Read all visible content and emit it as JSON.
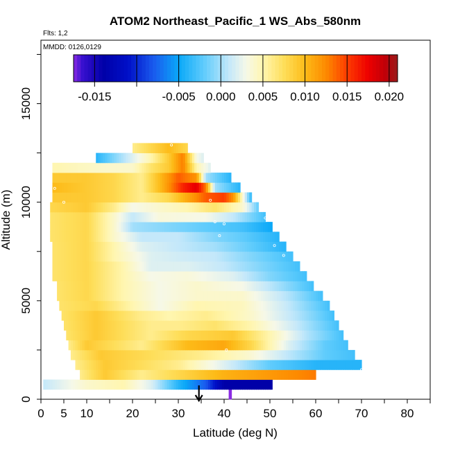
{
  "chart_data": {
    "type": "heatmap",
    "title": "ATOM2 Northeast_Pacific_1 WS_Abs_580nm",
    "flights_label": "Flts: 1,2",
    "dates_label": "MMDD: 0126,0129",
    "xlabel": "Latitude (deg N)",
    "ylabel": "Altitude (m)",
    "xlim": [
      0,
      85
    ],
    "ylim": [
      0,
      18500
    ],
    "x_ticks": [
      0,
      5,
      10,
      20,
      30,
      40,
      50,
      60,
      70,
      80
    ],
    "x_tick_labels": [
      "0",
      "5",
      "10",
      "20",
      "30",
      "40",
      "50",
      "60",
      "70",
      "80"
    ],
    "y_ticks": [
      0,
      5000,
      10000,
      15000
    ],
    "y_tick_labels": [
      "0",
      "5000",
      "10000",
      "15000"
    ],
    "colorbar": {
      "range": [
        -0.0175,
        0.021
      ],
      "ticks": [
        -0.015,
        -0.005,
        0.0,
        0.005,
        0.01,
        0.015,
        0.02
      ],
      "tick_labels": [
        "-0.015",
        "-0.005",
        "0.000",
        "0.005",
        "0.010",
        "0.015",
        "0.020"
      ],
      "colors": [
        {
          "v": -0.0175,
          "c": "#8a2be2"
        },
        {
          "v": -0.0165,
          "c": "#3a10d0"
        },
        {
          "v": -0.014,
          "c": "#0000a8"
        },
        {
          "v": -0.011,
          "c": "#0010c8"
        },
        {
          "v": -0.008,
          "c": "#1a5aee"
        },
        {
          "v": -0.005,
          "c": "#0aa8f8"
        },
        {
          "v": -0.002,
          "c": "#60ccfc"
        },
        {
          "v": 0.001,
          "c": "#c4e8fa"
        },
        {
          "v": 0.003,
          "c": "#f6f8e8"
        },
        {
          "v": 0.005,
          "c": "#fff6b0"
        },
        {
          "v": 0.0075,
          "c": "#fede5a"
        },
        {
          "v": 0.01,
          "c": "#fdbb18"
        },
        {
          "v": 0.0125,
          "c": "#fd8a00"
        },
        {
          "v": 0.015,
          "c": "#fd3c00"
        },
        {
          "v": 0.0175,
          "c": "#ee0000"
        },
        {
          "v": 0.0195,
          "c": "#c00008"
        },
        {
          "v": 0.021,
          "c": "#9a1c1c"
        }
      ]
    },
    "grid": false,
    "surface_marker_lat": 34.5,
    "rows": [
      {
        "alt": 0,
        "lat": [
          41,
          41
        ],
        "anchors": [
          [
            41,
            -0.0175
          ]
        ]
      },
      {
        "alt": 500,
        "lat": [
          0.5,
          50.5
        ],
        "anchors": [
          [
            0.5,
            0.001
          ],
          [
            10,
            0.004
          ],
          [
            18,
            0.005
          ],
          [
            24,
            0.002
          ],
          [
            30,
            -0.004
          ],
          [
            36,
            -0.008
          ],
          [
            40,
            -0.014
          ],
          [
            50.5,
            -0.014
          ]
        ]
      },
      {
        "alt": 1000,
        "lat": [
          8.5,
          60
        ],
        "anchors": [
          [
            8.5,
            0.006
          ],
          [
            14,
            0.009
          ],
          [
            22,
            0.006
          ],
          [
            30,
            0.008
          ],
          [
            40,
            0.0105
          ],
          [
            52,
            0.012
          ],
          [
            60,
            0.013
          ]
        ]
      },
      {
        "alt": 1500,
        "lat": [
          7.5,
          70
        ],
        "anchors": [
          [
            7.5,
            0.006
          ],
          [
            14,
            0.009
          ],
          [
            30,
            0.006
          ],
          [
            40,
            0.002
          ],
          [
            50,
            -0.002
          ],
          [
            60,
            -0.004
          ],
          [
            70,
            -0.004
          ]
        ]
      },
      {
        "alt": 2000,
        "lat": [
          6.5,
          68.5
        ],
        "anchors": [
          [
            6.5,
            0.006
          ],
          [
            13,
            0.009
          ],
          [
            28,
            0.007
          ],
          [
            35,
            0.006
          ],
          [
            45,
            0.004
          ],
          [
            55,
            0.0005
          ],
          [
            62,
            -0.002
          ],
          [
            68.5,
            -0.003
          ]
        ]
      },
      {
        "alt": 2500,
        "lat": [
          6,
          67
        ],
        "anchors": [
          [
            6,
            0.006
          ],
          [
            10,
            0.009
          ],
          [
            22,
            0.006
          ],
          [
            32,
            0.01
          ],
          [
            40,
            0.011
          ],
          [
            46,
            0.008
          ],
          [
            54,
            0.002
          ],
          [
            62,
            -0.002
          ],
          [
            67,
            -0.003
          ]
        ]
      },
      {
        "alt": 3000,
        "lat": [
          5.5,
          66
        ],
        "anchors": [
          [
            5.5,
            0.007
          ],
          [
            12,
            0.009
          ],
          [
            24,
            0.006
          ],
          [
            32,
            0.008
          ],
          [
            42,
            0.009
          ],
          [
            50,
            0.005
          ],
          [
            58,
            0.0005
          ],
          [
            66,
            -0.003
          ]
        ]
      },
      {
        "alt": 3500,
        "lat": [
          5,
          65
        ],
        "anchors": [
          [
            5,
            0.007
          ],
          [
            12,
            0.009
          ],
          [
            24,
            0.006
          ],
          [
            30,
            0.006
          ],
          [
            38,
            0.007
          ],
          [
            46,
            0.005
          ],
          [
            56,
            0.001
          ],
          [
            65,
            -0.003
          ]
        ]
      },
      {
        "alt": 4000,
        "lat": [
          4.5,
          64
        ],
        "anchors": [
          [
            4.5,
            0.007
          ],
          [
            12,
            0.009
          ],
          [
            22,
            0.006
          ],
          [
            28,
            0.005
          ],
          [
            36,
            0.006
          ],
          [
            46,
            0.004
          ],
          [
            56,
            0.0005
          ],
          [
            64,
            -0.003
          ]
        ]
      },
      {
        "alt": 4500,
        "lat": [
          4,
          63
        ],
        "anchors": [
          [
            4,
            0.007
          ],
          [
            12,
            0.008
          ],
          [
            20,
            0.005
          ],
          [
            26,
            0.003
          ],
          [
            34,
            0.005
          ],
          [
            44,
            0.0045
          ],
          [
            54,
            0.001
          ],
          [
            63,
            -0.003
          ]
        ]
      },
      {
        "alt": 5000,
        "lat": [
          3.5,
          61.5
        ],
        "anchors": [
          [
            3.5,
            0.007
          ],
          [
            10,
            0.008
          ],
          [
            18,
            0.005
          ],
          [
            26,
            0.003
          ],
          [
            34,
            0.004
          ],
          [
            44,
            0.004
          ],
          [
            54,
            0.0005
          ],
          [
            61.5,
            -0.003
          ]
        ]
      },
      {
        "alt": 5500,
        "lat": [
          3.5,
          59.5
        ],
        "anchors": [
          [
            3.5,
            0.007
          ],
          [
            10,
            0.008
          ],
          [
            18,
            0.005
          ],
          [
            26,
            0.003
          ],
          [
            34,
            0.004
          ],
          [
            44,
            0.003
          ],
          [
            52,
            0.0
          ],
          [
            59.5,
            -0.003
          ]
        ]
      },
      {
        "alt": 6000,
        "lat": [
          2.5,
          58
        ],
        "anchors": [
          [
            2.5,
            0.007
          ],
          [
            10,
            0.008
          ],
          [
            18,
            0.005
          ],
          [
            24,
            0.003
          ],
          [
            32,
            0.0035
          ],
          [
            42,
            0.002
          ],
          [
            50,
            -0.001
          ],
          [
            58,
            -0.003
          ]
        ]
      },
      {
        "alt": 6500,
        "lat": [
          2.5,
          56.5
        ],
        "anchors": [
          [
            2.5,
            0.007
          ],
          [
            10,
            0.008
          ],
          [
            18,
            0.005
          ],
          [
            24,
            0.002
          ],
          [
            32,
            0.002
          ],
          [
            40,
            0.001
          ],
          [
            48,
            -0.001
          ],
          [
            56.5,
            -0.003
          ]
        ]
      },
      {
        "alt": 7000,
        "lat": [
          2.5,
          55
        ],
        "anchors": [
          [
            2.5,
            0.007
          ],
          [
            10,
            0.008
          ],
          [
            16,
            0.005
          ],
          [
            24,
            0.002
          ],
          [
            30,
            0.0015
          ],
          [
            38,
            0.001
          ],
          [
            46,
            -0.001
          ],
          [
            55,
            -0.003
          ]
        ]
      },
      {
        "alt": 7500,
        "lat": [
          2.5,
          53.5
        ],
        "anchors": [
          [
            2.5,
            0.007
          ],
          [
            10,
            0.008
          ],
          [
            16,
            0.005
          ],
          [
            22,
            0.002
          ],
          [
            30,
            0.001
          ],
          [
            38,
            0.0
          ],
          [
            46,
            -0.002
          ],
          [
            53.5,
            -0.004
          ]
        ]
      },
      {
        "alt": 8000,
        "lat": [
          2,
          52
        ],
        "anchors": [
          [
            2,
            0.007
          ],
          [
            10,
            0.008
          ],
          [
            16,
            0.004
          ],
          [
            22,
            0.001
          ],
          [
            30,
            0.001
          ],
          [
            38,
            -0.001
          ],
          [
            44,
            -0.002
          ],
          [
            52,
            -0.004
          ]
        ]
      },
      {
        "alt": 8500,
        "lat": [
          2,
          50.5
        ],
        "anchors": [
          [
            2,
            0.007
          ],
          [
            10,
            0.008
          ],
          [
            16,
            0.004
          ],
          [
            20,
            0.0
          ],
          [
            28,
            -0.001
          ],
          [
            36,
            -0.002
          ],
          [
            44,
            -0.003
          ],
          [
            50.5,
            -0.005
          ]
        ]
      },
      {
        "alt": 9000,
        "lat": [
          2,
          49
        ],
        "anchors": [
          [
            2,
            0.007
          ],
          [
            10,
            0.008
          ],
          [
            16,
            0.004
          ],
          [
            20,
            0.001
          ],
          [
            26,
            0.0035
          ],
          [
            36,
            0.003
          ],
          [
            42,
            0.001
          ],
          [
            49,
            -0.003
          ]
        ]
      },
      {
        "alt": 9500,
        "lat": [
          2,
          47.5
        ],
        "anchors": [
          [
            2,
            0.008
          ],
          [
            10,
            0.009
          ],
          [
            16,
            0.006
          ],
          [
            20,
            0.003
          ],
          [
            26,
            0.004
          ],
          [
            32,
            0.005
          ],
          [
            38,
            0.007
          ],
          [
            44,
            0.004
          ],
          [
            47.5,
            -0.002
          ]
        ]
      },
      {
        "alt": 10000,
        "lat": [
          2.5,
          46
        ],
        "anchors": [
          [
            2.5,
            0.009
          ],
          [
            10,
            0.009
          ],
          [
            16,
            0.008
          ],
          [
            22,
            0.006
          ],
          [
            28,
            0.008
          ],
          [
            32,
            0.011
          ],
          [
            36,
            0.014
          ],
          [
            40,
            0.015
          ],
          [
            42,
            0.012
          ],
          [
            46,
            -0.004
          ]
        ]
      },
      {
        "alt": 10500,
        "lat": [
          2.5,
          43.5
        ],
        "anchors": [
          [
            2.5,
            0.01
          ],
          [
            10,
            0.009
          ],
          [
            16,
            0.008
          ],
          [
            22,
            0.006
          ],
          [
            27,
            0.011
          ],
          [
            31,
            0.016
          ],
          [
            34,
            0.018
          ],
          [
            36,
            0.013
          ],
          [
            38,
            0.0
          ],
          [
            43.5,
            -0.004
          ]
        ]
      },
      {
        "alt": 11000,
        "lat": [
          2.5,
          41.5
        ],
        "anchors": [
          [
            2.5,
            0.009
          ],
          [
            10,
            0.009
          ],
          [
            16,
            0.008
          ],
          [
            22,
            0.006
          ],
          [
            26,
            0.01
          ],
          [
            30,
            0.014
          ],
          [
            34,
            0.012
          ],
          [
            36,
            0.0
          ],
          [
            41.5,
            -0.004
          ]
        ]
      },
      {
        "alt": 11500,
        "lat": [
          2.5,
          37
        ],
        "anchors": [
          [
            2.5,
            0.005
          ],
          [
            8,
            0.0045
          ],
          [
            14,
            0.004
          ],
          [
            20,
            0.004
          ],
          [
            24,
            0.007
          ],
          [
            28,
            0.009
          ],
          [
            31,
            0.013
          ],
          [
            34,
            0.005
          ],
          [
            37,
            0.002
          ]
        ]
      },
      {
        "alt": 12000,
        "lat": [
          12,
          35.5
        ],
        "anchors": [
          [
            12,
            -0.004
          ],
          [
            16,
            -0.001
          ],
          [
            20,
            0.002
          ],
          [
            24,
            0.005
          ],
          [
            28,
            0.009
          ],
          [
            31,
            0.013
          ],
          [
            34,
            0.003
          ],
          [
            35.5,
            0.002
          ]
        ]
      },
      {
        "alt": 12500,
        "lat": [
          20,
          32
        ],
        "anchors": [
          [
            20,
            0.006
          ],
          [
            24,
            0.008
          ],
          [
            28,
            0.01
          ],
          [
            32,
            0.008
          ]
        ]
      }
    ]
  }
}
